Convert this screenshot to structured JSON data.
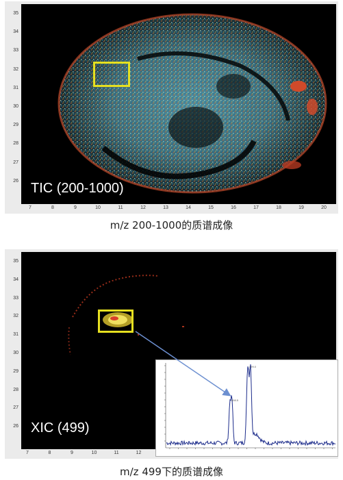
{
  "top_panel": {
    "label": "TIC (200-1000)",
    "caption": "m/z 200-1000的质谱成像",
    "y_ticks": [
      "35",
      "34",
      "33",
      "32",
      "31",
      "30",
      "29",
      "28",
      "27",
      "26"
    ],
    "x_ticks": [
      "7",
      "8",
      "9",
      "10",
      "11",
      "12",
      "13",
      "14",
      "15",
      "16",
      "17",
      "18",
      "19",
      "20"
    ]
  },
  "bottom_panel": {
    "label": "XIC (499)",
    "caption": "m/z 499下的质谱成像",
    "y_ticks": [
      "35",
      "34",
      "33",
      "32",
      "31",
      "30",
      "29",
      "28",
      "27",
      "26"
    ],
    "x_ticks": [
      "7",
      "8",
      "9",
      "10",
      "11",
      "12"
    ]
  },
  "spectrum_inset": {
    "peak_labels": [
      "498.5",
      "499.0"
    ]
  },
  "colors": {
    "roi": "#e6e020",
    "spectrum_line": "#1a2a8a",
    "arrow": "#6c8fd0"
  }
}
